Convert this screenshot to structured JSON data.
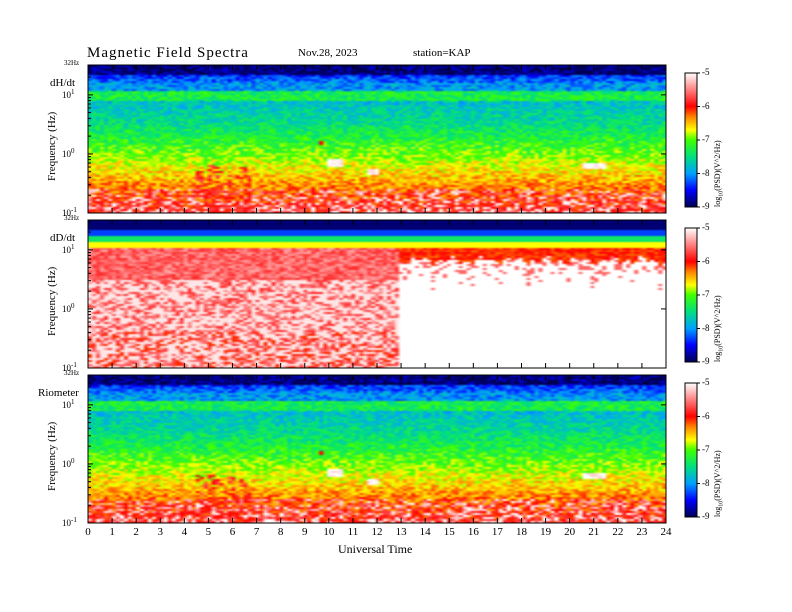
{
  "header": {
    "title": "Magnetic  Field  Spectra",
    "date": "Nov.28, 2023",
    "station": "station=KAP"
  },
  "x_axis": {
    "label": "Universal Time",
    "ticks": [
      "0",
      "1",
      "2",
      "3",
      "4",
      "5",
      "6",
      "7",
      "8",
      "9",
      "10",
      "11",
      "12",
      "13",
      "14",
      "15",
      "16",
      "17",
      "18",
      "19",
      "20",
      "21",
      "22",
      "23",
      "24"
    ]
  },
  "panels": [
    {
      "name": "dH/dt",
      "ylabel": "Frequency  (Hz)",
      "top_tick": "32Hz"
    },
    {
      "name": "dD/dt",
      "ylabel": "Frequency  (Hz)",
      "top_tick": "32Hz"
    },
    {
      "name": "Riometer",
      "ylabel": "Frequency  (Hz)",
      "top_tick": "32Hz"
    }
  ],
  "y_ticks": [
    {
      "base": "10",
      "exp": "1"
    },
    {
      "base": "10",
      "exp": "0"
    },
    {
      "base": "10",
      "exp": "-1"
    }
  ],
  "colorbar": {
    "title_main": "log",
    "title_sub": "10",
    "title_rest": "(PSD)(V^2/Hz)",
    "ticks": [
      "-5",
      "-6",
      "-7",
      "-8",
      "-9"
    ]
  },
  "chart_data": {
    "type": "heatmap",
    "title": "Magnetic  Field  Spectra",
    "xlabel": "Universal Time",
    "ylabel": "Frequency  (Hz)",
    "xlim": [
      0,
      24
    ],
    "ylim_hz": [
      0.1,
      32
    ],
    "y_scale": "log",
    "color_scale": "log10(PSD) (V^2/Hz)",
    "clim": [
      -9,
      -5
    ],
    "colormap_stops": [
      {
        "v": -9,
        "color": "#000050"
      },
      {
        "v": -8.5,
        "color": "#0000ff"
      },
      {
        "v": -8,
        "color": "#00a0ff"
      },
      {
        "v": -7.5,
        "color": "#00e080"
      },
      {
        "v": -7,
        "color": "#40ff00"
      },
      {
        "v": -6.7,
        "color": "#ffff00"
      },
      {
        "v": -6.3,
        "color": "#ff8000"
      },
      {
        "v": -6,
        "color": "#ff0000"
      },
      {
        "v": -5.5,
        "color": "#ff8080"
      },
      {
        "v": -5,
        "color": "#ffffff"
      }
    ],
    "series": [
      {
        "name": "dH/dt",
        "pattern": "broadband green-yellow with red low-frequency bursts; bright white-red events near 10-12 UT and 20-22 UT at ~0.6 Hz"
      },
      {
        "name": "dD/dt",
        "pattern": "saturated red/white below ~8 Hz; after 13 UT mostly white below ~8 Hz with a spiky red band near 10 Hz"
      },
      {
        "name": "Riometer",
        "pattern": "similar to dH/dt"
      }
    ]
  }
}
